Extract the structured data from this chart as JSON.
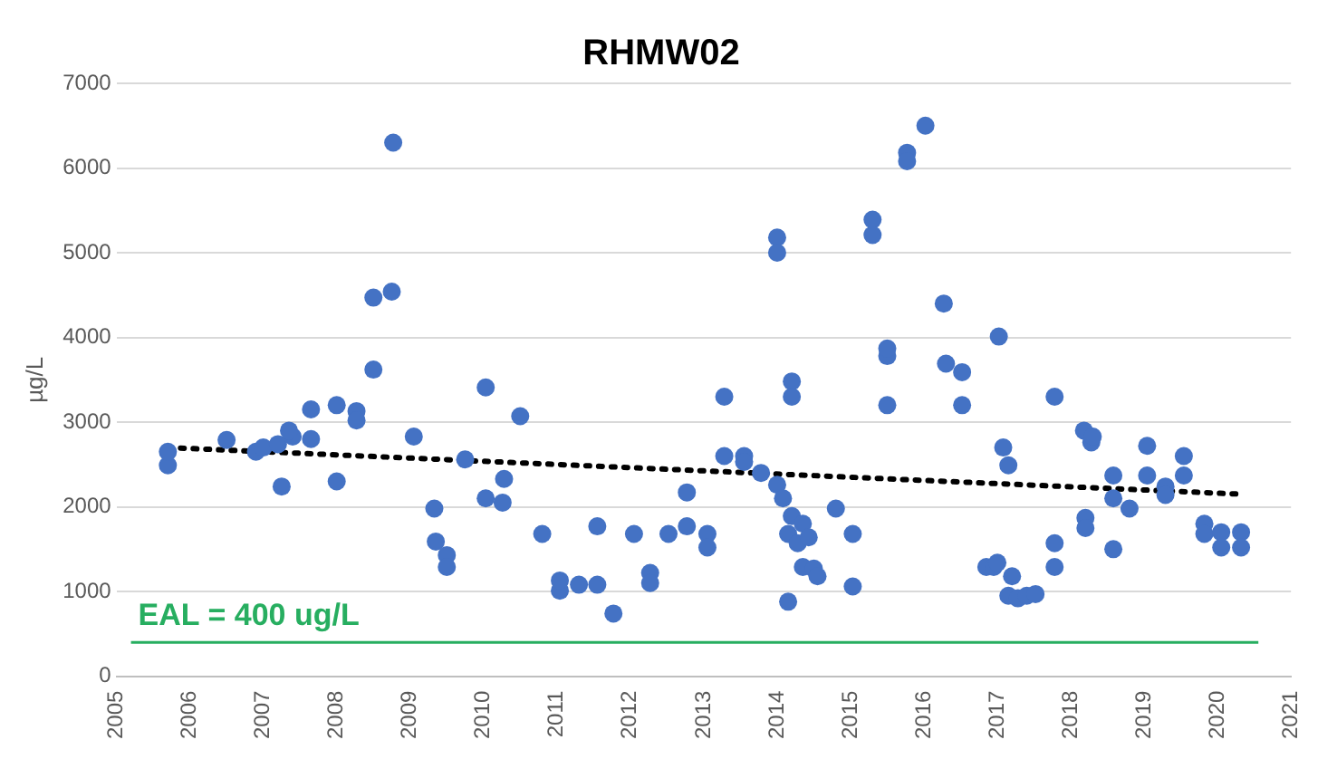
{
  "chart_data": {
    "type": "scatter",
    "title": "RHMW02",
    "ylabel": "µg/L",
    "marker": "circle",
    "grid": "y",
    "legend": false,
    "xlim": [
      2005,
      2021
    ],
    "xticks": [
      2005,
      2006,
      2007,
      2008,
      2009,
      2010,
      2011,
      2012,
      2013,
      2014,
      2015,
      2016,
      2017,
      2018,
      2019,
      2020,
      2021
    ],
    "ylim": [
      0,
      7000
    ],
    "yticks": [
      0,
      1000,
      2000,
      3000,
      4000,
      5000,
      6000,
      7000
    ],
    "series": [
      {
        "color": "#4472c4",
        "x": [
          2005.7,
          2005.7,
          2006.5,
          2006.9,
          2007.0,
          2007.25,
          2007.2,
          2007.4,
          2007.35,
          2007.65,
          2007.65,
          2008.0,
          2008.0,
          2008.27,
          2008.27,
          2008.5,
          2008.5,
          2008.75,
          2008.77,
          2009.05,
          2009.33,
          2009.35,
          2009.5,
          2009.5,
          2009.75,
          2010.03,
          2010.03,
          2010.26,
          2010.28,
          2010.5,
          2010.8,
          2011.04,
          2011.04,
          2011.3,
          2011.55,
          2011.55,
          2011.77,
          2012.05,
          2012.27,
          2012.27,
          2012.52,
          2012.77,
          2012.77,
          2013.05,
          2013.05,
          2013.28,
          2013.28,
          2013.55,
          2013.55,
          2013.78,
          2014.0,
          2014.0,
          2014.0,
          2014.08,
          2014.2,
          2014.2,
          2014.15,
          2014.2,
          2014.15,
          2014.28,
          2014.35,
          2014.43,
          2014.35,
          2014.5,
          2014.55,
          2014.8,
          2015.03,
          2015.03,
          2015.3,
          2015.3,
          2015.5,
          2015.5,
          2015.5,
          2015.77,
          2015.77,
          2016.02,
          2016.27,
          2016.3,
          2016.52,
          2016.52,
          2017.02,
          2016.85,
          2016.95,
          2017.0,
          2017.08,
          2017.15,
          2017.15,
          2017.2,
          2017.28,
          2017.4,
          2017.52,
          2017.78,
          2017.78,
          2017.78,
          2018.18,
          2018.28,
          2018.2,
          2018.2,
          2018.3,
          2018.58,
          2018.58,
          2018.58,
          2018.8,
          2019.04,
          2019.04,
          2019.29,
          2019.29,
          2019.54,
          2019.54,
          2019.82,
          2019.82,
          2020.05,
          2020.05,
          2020.32,
          2020.32
        ],
        "values": [
          2490,
          2650,
          2790,
          2650,
          2700,
          2240,
          2740,
          2830,
          2900,
          2800,
          3150,
          3200,
          2300,
          3130,
          3020,
          3620,
          4470,
          4540,
          6300,
          2830,
          1980,
          1590,
          1430,
          1290,
          2560,
          3410,
          2100,
          2050,
          2330,
          3070,
          1680,
          1010,
          1130,
          1080,
          1080,
          1770,
          740,
          1680,
          1220,
          1100,
          1680,
          1770,
          2170,
          1680,
          1520,
          3300,
          2600,
          2600,
          2530,
          2400,
          5180,
          5000,
          2260,
          2100,
          3480,
          3300,
          880,
          1890,
          1680,
          1570,
          1800,
          1640,
          1290,
          1270,
          1180,
          1980,
          1680,
          1060,
          5390,
          5210,
          3780,
          3870,
          3200,
          6180,
          6080,
          6500,
          4400,
          3690,
          3590,
          3200,
          4010,
          1290,
          1290,
          1340,
          2700,
          2490,
          950,
          1180,
          920,
          950,
          970,
          3300,
          1570,
          1290,
          2900,
          2760,
          1870,
          1750,
          2830,
          2370,
          2100,
          1500,
          1980,
          2720,
          2370,
          2240,
          2140,
          2600,
          2370,
          1800,
          1680,
          1700,
          1520,
          1700,
          1520
        ]
      },
      {
        "type": "line",
        "color": "#000000",
        "line_style": "dotted",
        "marker": "none",
        "x": [
          2005.7,
          2020.3
        ],
        "values": [
          2700,
          2150
        ]
      }
    ],
    "ref_lines": [
      {
        "axis": "y",
        "value": 400,
        "label": "EAL = 400 ug/L",
        "color": "#27ae60"
      }
    ]
  }
}
